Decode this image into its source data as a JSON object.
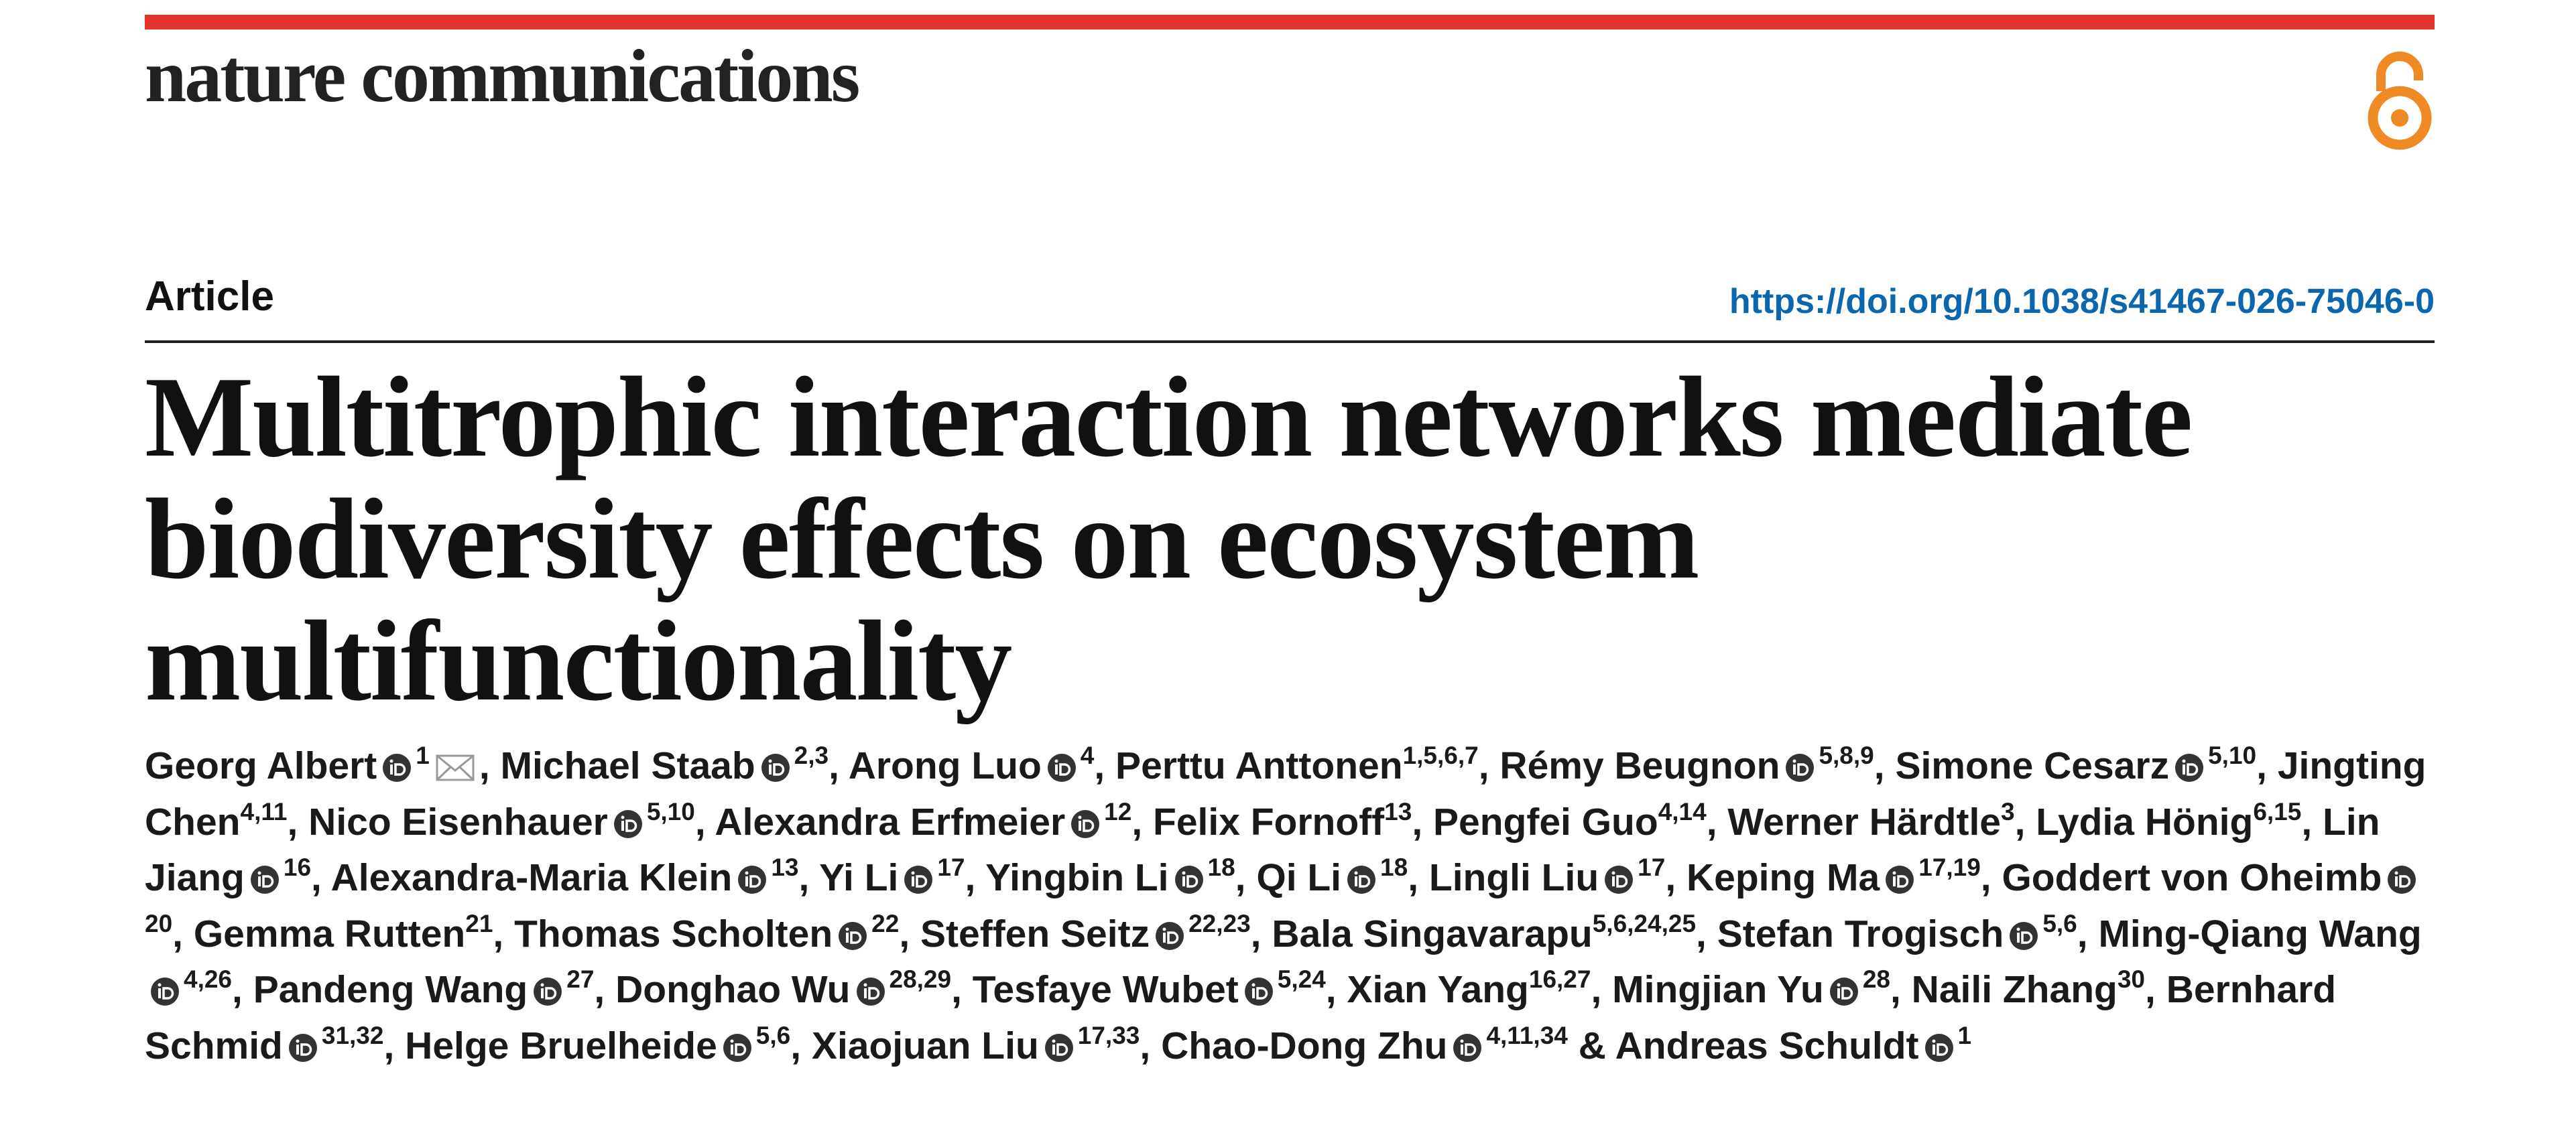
{
  "header": {
    "journal": "nature communications"
  },
  "article": {
    "type": "Article",
    "doi": "https://doi.org/10.1038/s41467-026-75046-0",
    "title": "Multitrophic interaction networks mediate biodiversity effects on ecosystem multifunctionality"
  },
  "author_list": {
    "delimiter": ",",
    "conjunction": "&",
    "authors": [
      {
        "name": "Georg Albert",
        "orcid": true,
        "affiliations": "1",
        "corresponding": true
      },
      {
        "name": "Michael Staab",
        "orcid": true,
        "affiliations": "2,3"
      },
      {
        "name": "Arong Luo",
        "orcid": true,
        "affiliations": "4"
      },
      {
        "name": "Perttu Anttonen",
        "orcid": false,
        "affiliations": "1,5,6,7"
      },
      {
        "name": "Rémy Beugnon",
        "orcid": true,
        "affiliations": "5,8,9"
      },
      {
        "name": "Simone Cesarz",
        "orcid": true,
        "affiliations": "5,10"
      },
      {
        "name": "Jingting Chen",
        "orcid": false,
        "affiliations": "4,11"
      },
      {
        "name": "Nico Eisenhauer",
        "orcid": true,
        "affiliations": "5,10"
      },
      {
        "name": "Alexandra Erfmeier",
        "orcid": true,
        "affiliations": "12"
      },
      {
        "name": "Felix Fornoff",
        "orcid": false,
        "affiliations": "13"
      },
      {
        "name": "Pengfei Guo",
        "orcid": false,
        "affiliations": "4,14"
      },
      {
        "name": "Werner Härdtle",
        "orcid": false,
        "affiliations": "3"
      },
      {
        "name": "Lydia Hönig",
        "orcid": false,
        "affiliations": "6,15"
      },
      {
        "name": "Lin Jiang",
        "orcid": true,
        "affiliations": "16"
      },
      {
        "name": "Alexandra-Maria Klein",
        "orcid": true,
        "affiliations": "13"
      },
      {
        "name": "Yi Li",
        "orcid": true,
        "affiliations": "17"
      },
      {
        "name": "Yingbin Li",
        "orcid": true,
        "affiliations": "18"
      },
      {
        "name": "Qi Li",
        "orcid": true,
        "affiliations": "18"
      },
      {
        "name": "Lingli Liu",
        "orcid": true,
        "affiliations": "17"
      },
      {
        "name": "Keping Ma",
        "orcid": true,
        "affiliations": "17,19"
      },
      {
        "name": "Goddert von Oheimb",
        "orcid": true,
        "affiliations": "20"
      },
      {
        "name": "Gemma Rutten",
        "orcid": false,
        "affiliations": "21"
      },
      {
        "name": "Thomas Scholten",
        "orcid": true,
        "affiliations": "22"
      },
      {
        "name": "Steffen Seitz",
        "orcid": true,
        "affiliations": "22,23"
      },
      {
        "name": "Bala Singavarapu",
        "orcid": false,
        "affiliations": "5,6,24,25"
      },
      {
        "name": "Stefan Trogisch",
        "orcid": true,
        "affiliations": "5,6"
      },
      {
        "name": "Ming-Qiang Wang",
        "orcid": true,
        "affiliations": "4,26"
      },
      {
        "name": "Pandeng Wang",
        "orcid": true,
        "affiliations": "27"
      },
      {
        "name": "Donghao Wu",
        "orcid": true,
        "affiliations": "28,29"
      },
      {
        "name": "Tesfaye Wubet",
        "orcid": true,
        "affiliations": "5,24"
      },
      {
        "name": "Xian Yang",
        "orcid": false,
        "affiliations": "16,27"
      },
      {
        "name": "Mingjian Yu",
        "orcid": true,
        "affiliations": "28"
      },
      {
        "name": "Naili Zhang",
        "orcid": false,
        "affiliations": "30"
      },
      {
        "name": "Bernhard Schmid",
        "orcid": true,
        "affiliations": "31,32"
      },
      {
        "name": "Helge Bruelheide",
        "orcid": true,
        "affiliations": "5,6"
      },
      {
        "name": "Xiaojuan Liu",
        "orcid": true,
        "affiliations": "17,33"
      },
      {
        "name": "Chao-Dong Zhu",
        "orcid": true,
        "affiliations": "4,11,34"
      },
      {
        "name": "Andreas Schuldt",
        "orcid": true,
        "affiliations": "1"
      }
    ]
  }
}
